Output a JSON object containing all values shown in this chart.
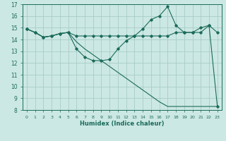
{
  "xlabel": "Humidex (Indice chaleur)",
  "bg_color": "#cce8e4",
  "grid_color": "#a8ccc8",
  "line_color": "#1a6b5a",
  "xlim": [
    -0.5,
    23.5
  ],
  "ylim": [
    8,
    17
  ],
  "xticks": [
    0,
    1,
    2,
    3,
    4,
    5,
    6,
    7,
    8,
    9,
    10,
    11,
    12,
    13,
    14,
    15,
    16,
    17,
    18,
    19,
    20,
    21,
    22,
    23
  ],
  "yticks": [
    8,
    9,
    10,
    11,
    12,
    13,
    14,
    15,
    16,
    17
  ],
  "line1_x": [
    0,
    1,
    2,
    3,
    4,
    5,
    6,
    7,
    8,
    9,
    10,
    11,
    12,
    13,
    14,
    15,
    16,
    17,
    18,
    19,
    20,
    21,
    22,
    23
  ],
  "line1_y": [
    14.9,
    14.6,
    14.2,
    14.3,
    14.5,
    14.6,
    13.2,
    12.5,
    12.2,
    12.2,
    12.3,
    13.2,
    13.9,
    14.3,
    14.9,
    15.7,
    16.0,
    16.8,
    15.2,
    14.6,
    14.6,
    15.0,
    15.2,
    8.3
  ],
  "line2_x": [
    0,
    1,
    2,
    3,
    4,
    5,
    6,
    7,
    8,
    9,
    10,
    11,
    12,
    13,
    14,
    15,
    16,
    17,
    18,
    19,
    20,
    21,
    22,
    23
  ],
  "line2_y": [
    14.9,
    14.6,
    14.2,
    14.3,
    14.5,
    14.6,
    14.3,
    14.3,
    14.3,
    14.3,
    14.3,
    14.3,
    14.3,
    14.3,
    14.3,
    14.3,
    14.3,
    14.3,
    14.6,
    14.6,
    14.6,
    14.6,
    15.2,
    14.6
  ],
  "line3_x": [
    0,
    1,
    2,
    3,
    4,
    5,
    6,
    7,
    8,
    9,
    10,
    11,
    12,
    13,
    14,
    15,
    16,
    17,
    18,
    19,
    20,
    21,
    22,
    23
  ],
  "line3_y": [
    14.9,
    14.6,
    14.2,
    14.3,
    14.5,
    14.6,
    13.8,
    13.2,
    12.7,
    12.2,
    11.7,
    11.2,
    10.7,
    10.2,
    9.7,
    9.2,
    8.7,
    8.3,
    8.3,
    8.3,
    8.3,
    8.3,
    8.3,
    8.3
  ]
}
